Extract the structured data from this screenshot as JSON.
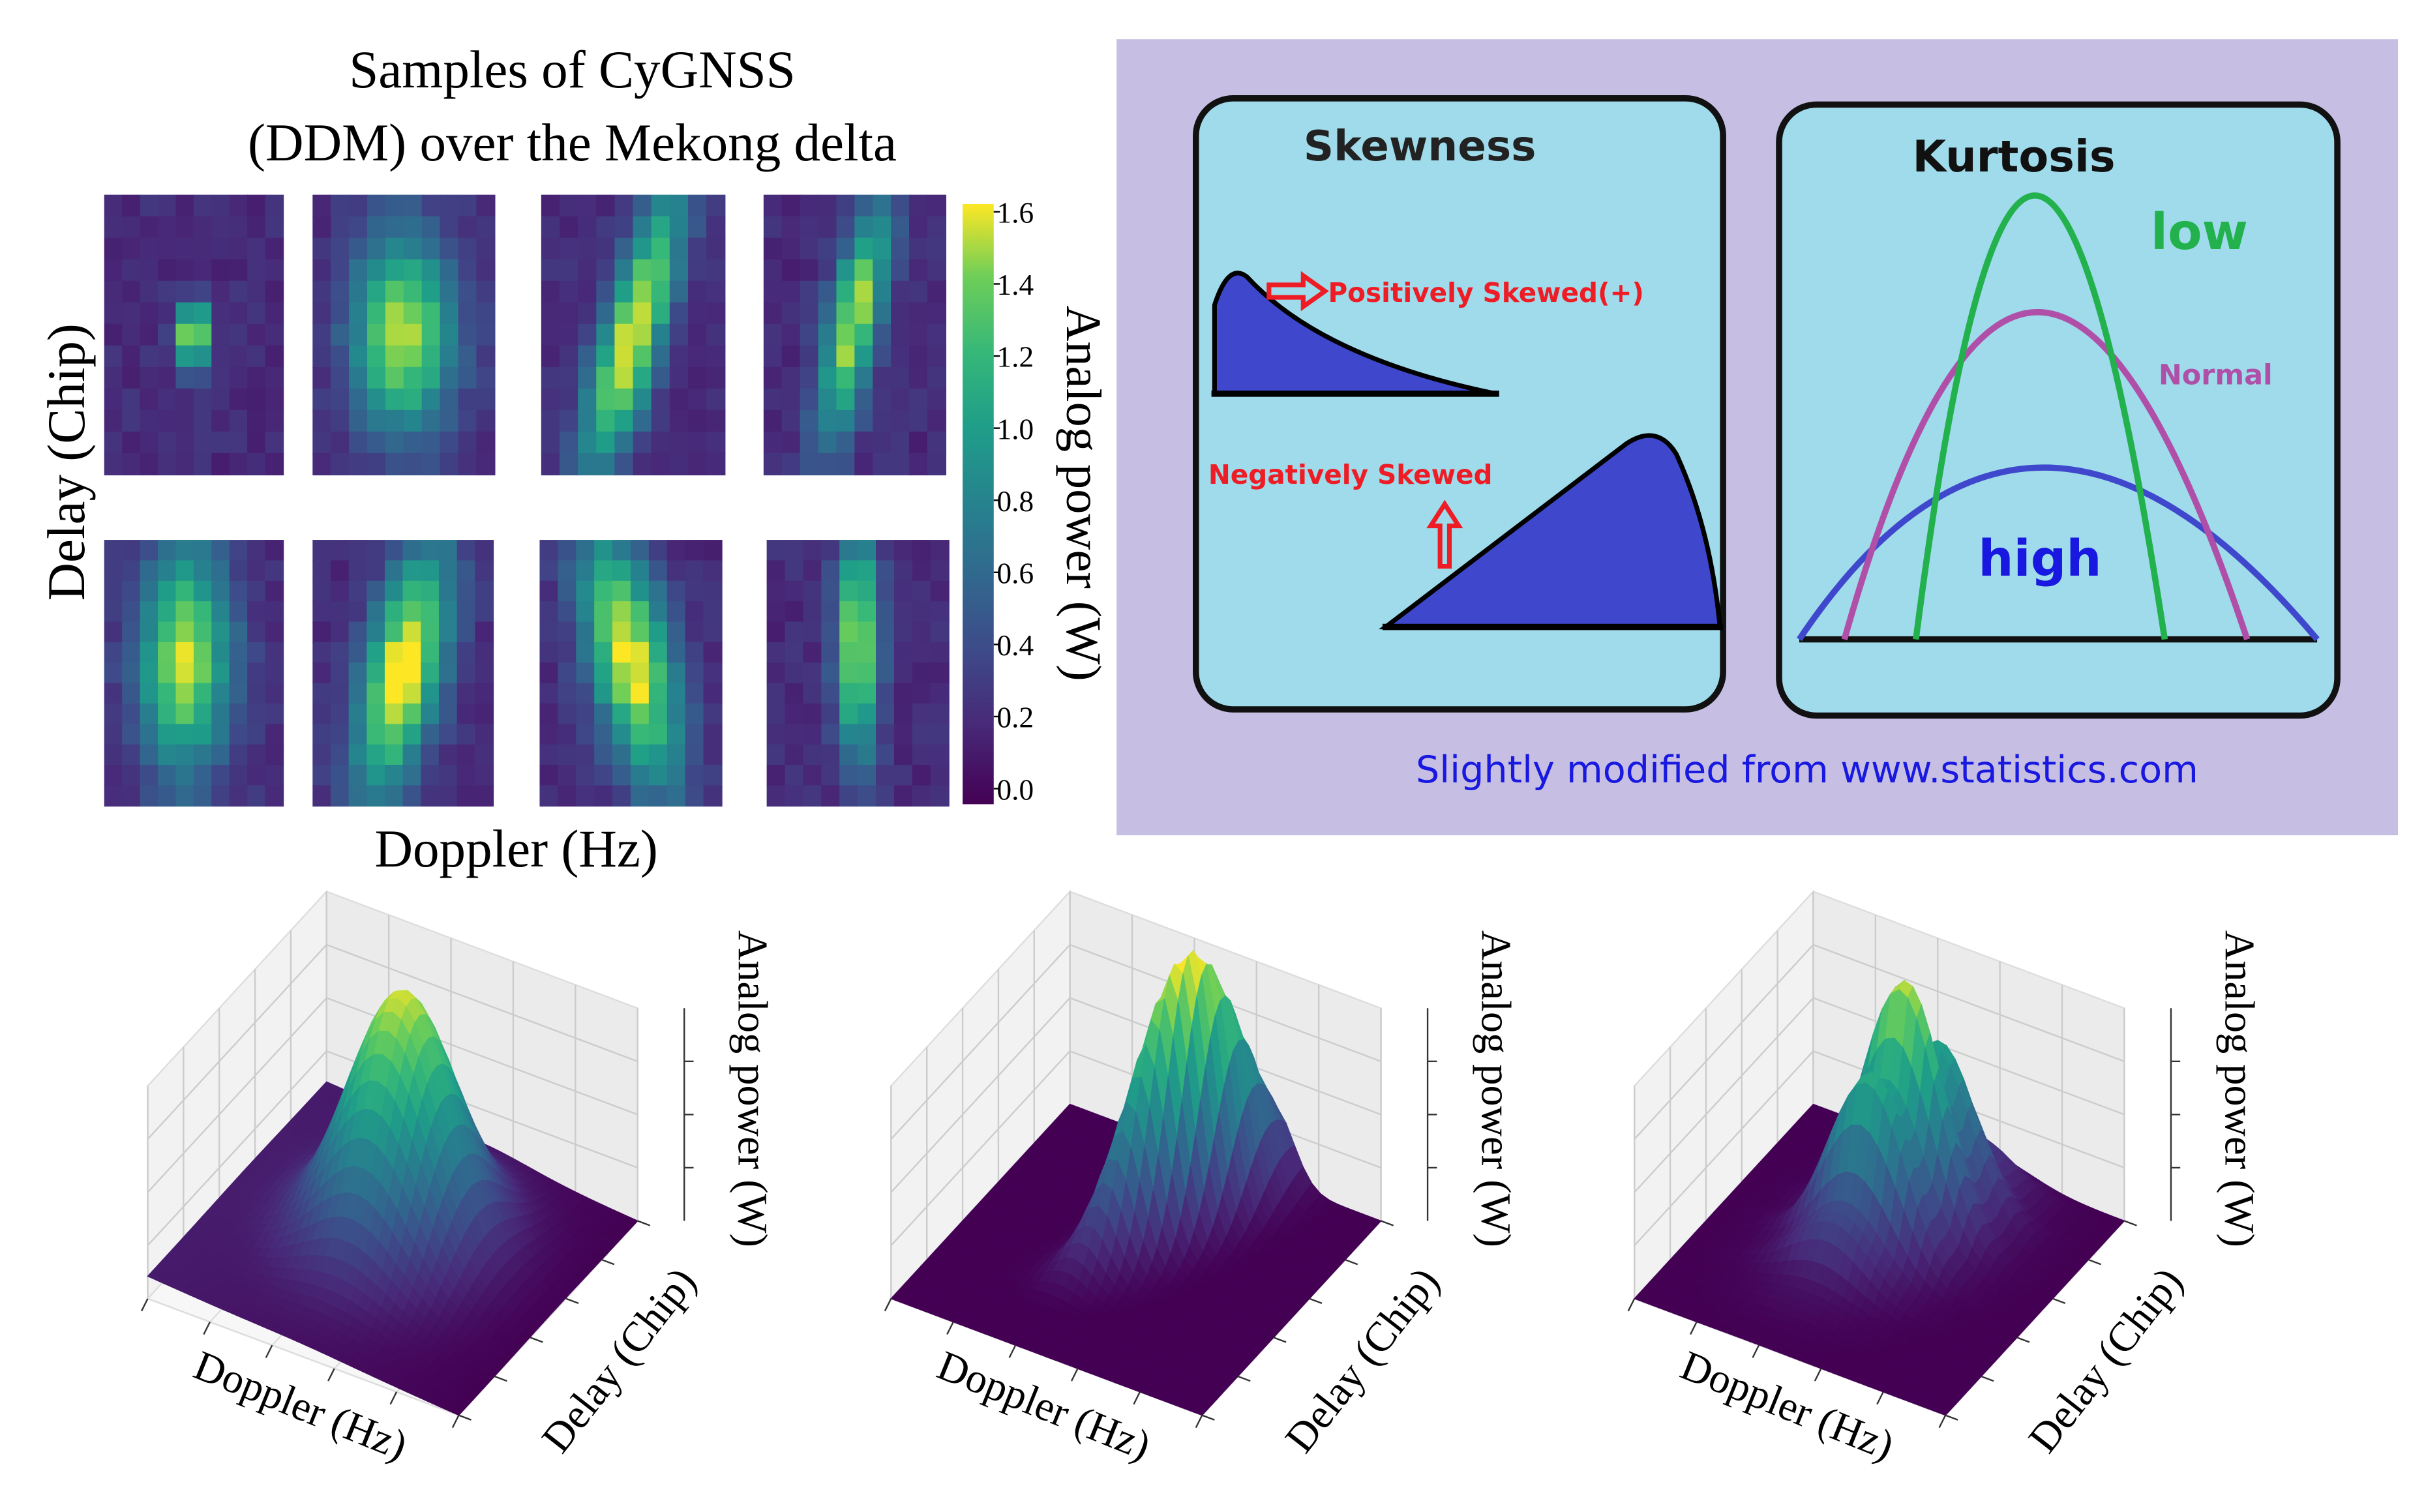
{
  "left_panel": {
    "title_line1": "Samples of CyGNSS",
    "title_line2": "(DDM) over the Mekong delta",
    "y_label": "Delay (Chip)",
    "x_label": "Doppler (Hz)",
    "colorbar_label": "Analog power (W)",
    "colorbar_ticks": [
      "1.6",
      "1.4",
      "1.2",
      "1.0",
      "0.8",
      "0.6",
      "0.4",
      "0.2",
      "0.0"
    ],
    "colorbar_range": [
      0.0,
      1.6
    ]
  },
  "right_panel": {
    "skewness_title": "Skewness",
    "positive_label": "Positively Skewed(+)",
    "negative_label": "Negatively Skewed",
    "kurtosis_title": "Kurtosis",
    "low_label": "low",
    "normal_label": "Normal",
    "high_label": "high",
    "credit": "Slightly modified from www.statistics.com",
    "colors": {
      "background": "#c6bfe3",
      "panel": "#9fdbea",
      "shape": "#3f48cc",
      "red": "#ee1c24",
      "green": "#22b14c",
      "magenta": "#b04fa8",
      "blue": "#1818e0"
    }
  },
  "surface_plots": [
    {
      "x_label": "Doppler (Hz)",
      "y_label": "Delay (Chip)",
      "z_label": "Analog power (W)"
    },
    {
      "x_label": "Doppler (Hz)",
      "y_label": "Delay (Chip)",
      "z_label": "Analog power (W)"
    },
    {
      "x_label": "Doppler (Hz)",
      "y_label": "Delay (Chip)",
      "z_label": "Analog power (W)"
    }
  ]
}
